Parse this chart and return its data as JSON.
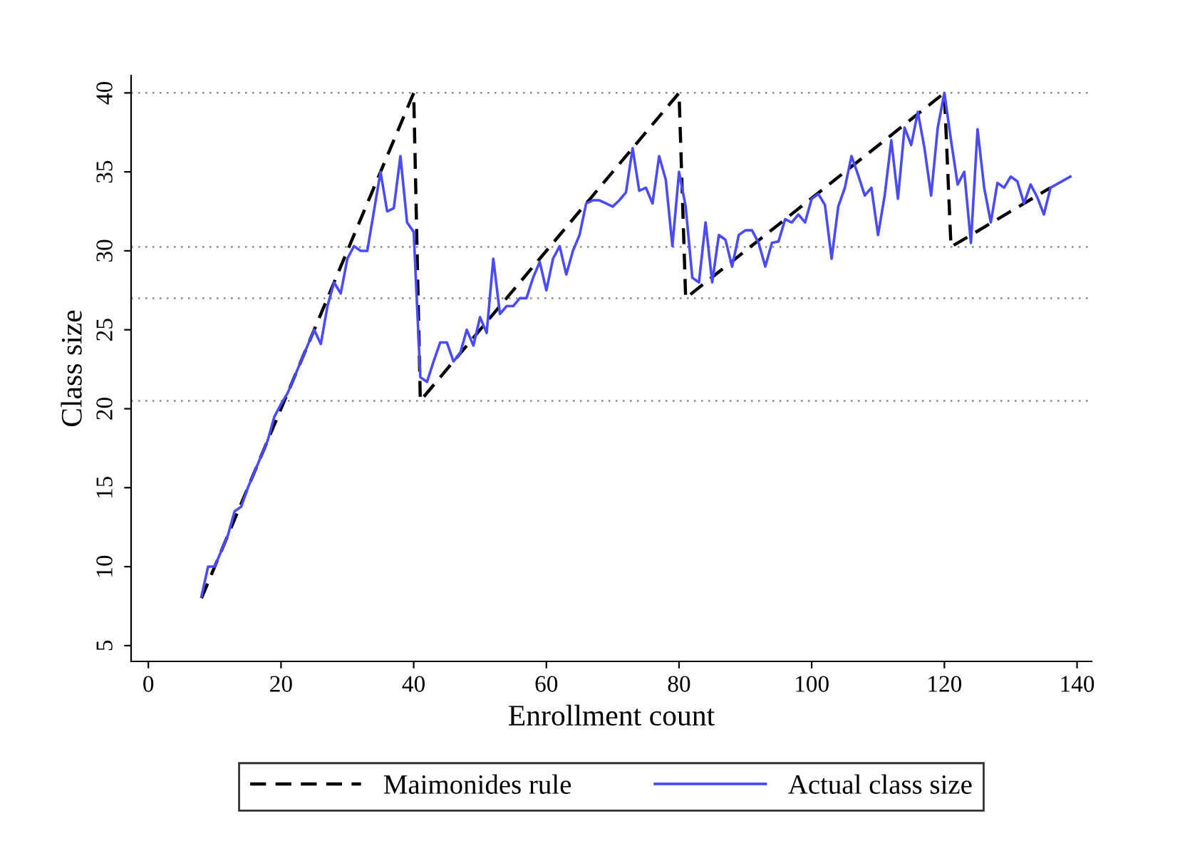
{
  "chart_data": {
    "type": "line",
    "xlabel": "Enrollment count",
    "ylabel": "Class size",
    "xlim": [
      -2.6,
      142.2
    ],
    "ylim": [
      4.0,
      41.1
    ],
    "xticks": [
      0,
      20,
      40,
      60,
      80,
      100,
      120,
      140
    ],
    "yticks": [
      5,
      10,
      15,
      20,
      25,
      30,
      35,
      40
    ],
    "grid": false,
    "legend": "bottom",
    "ref_lines": [
      {
        "axis": "y",
        "value": 40,
        "line_style": "dotted",
        "color": "#888888"
      },
      {
        "axis": "y",
        "value": 30.25,
        "line_style": "dotted",
        "color": "#888888"
      },
      {
        "axis": "y",
        "value": 27,
        "line_style": "dotted",
        "color": "#888888"
      },
      {
        "axis": "y",
        "value": 20.5,
        "line_style": "dotted",
        "color": "#888888"
      }
    ],
    "series": [
      {
        "name": "Maimonides rule",
        "color": "#000000",
        "line_style": "dashed",
        "x": [
          8,
          40,
          41,
          80,
          81,
          120,
          121,
          136
        ],
        "values": [
          8,
          40,
          20.5,
          40,
          27,
          40,
          30.25,
          34
        ]
      },
      {
        "name": "Actual class size",
        "color": "#4a4aff",
        "line_style": "solid",
        "x": [
          8,
          9,
          10,
          11,
          12,
          13,
          14,
          15,
          16,
          17,
          18,
          19,
          20,
          21,
          22,
          23,
          24,
          25,
          26,
          27,
          28,
          29,
          30,
          31,
          32,
          33,
          34,
          35,
          36,
          37,
          38,
          39,
          40,
          41,
          42,
          43,
          44,
          45,
          46,
          47,
          48,
          49,
          50,
          51,
          52,
          53,
          54,
          55,
          56,
          57,
          58,
          59,
          60,
          61,
          62,
          63,
          64,
          65,
          66,
          67,
          68,
          69,
          70,
          71,
          72,
          73,
          74,
          75,
          76,
          77,
          78,
          79,
          80,
          81,
          82,
          83,
          84,
          85,
          86,
          87,
          88,
          89,
          90,
          91,
          92,
          93,
          94,
          95,
          96,
          97,
          98,
          99,
          100,
          101,
          102,
          103,
          104,
          105,
          106,
          107,
          108,
          109,
          110,
          111,
          112,
          113,
          114,
          115,
          116,
          117,
          118,
          119,
          120,
          121,
          122,
          123,
          124,
          125,
          126,
          127,
          128,
          129,
          130,
          131,
          132,
          133,
          134,
          135,
          136,
          139
        ],
        "values": [
          8.1,
          10,
          10,
          11,
          12,
          13.5,
          13.8,
          15,
          16,
          17,
          18,
          19.5,
          20.3,
          21,
          22,
          23,
          24,
          25,
          24.1,
          26.5,
          28,
          27.3,
          29.5,
          30.3,
          30,
          30,
          32.5,
          35,
          32.5,
          32.7,
          36,
          31.8,
          31.2,
          22,
          21.7,
          23,
          24.2,
          24.2,
          23,
          23.5,
          25,
          24,
          25.8,
          24.8,
          29.5,
          26,
          26.5,
          26.5,
          27,
          27,
          28.3,
          29.3,
          27.5,
          29.5,
          30.3,
          28.5,
          30,
          31,
          33,
          33.2,
          33.2,
          33,
          32.8,
          33.2,
          33.7,
          36.5,
          33.8,
          34,
          33,
          36,
          34.5,
          30.3,
          35,
          32.8,
          28.3,
          28,
          31.8,
          28,
          31,
          30.7,
          29,
          31,
          31.3,
          31.3,
          30.5,
          29,
          30.5,
          30.6,
          32,
          31.8,
          32.3,
          31.8,
          33.3,
          33.6,
          32.9,
          29.5,
          32.8,
          34,
          36,
          34.8,
          33.5,
          34,
          31,
          33.5,
          37,
          33.3,
          37.8,
          36.7,
          38.8,
          36.5,
          33.5,
          37.8,
          40,
          37,
          34.2,
          35,
          30.5,
          37.7,
          34,
          31.8,
          34.3,
          34,
          34.7,
          34.4,
          33,
          34.2,
          33.4,
          32.3,
          34,
          34.7
        ]
      }
    ]
  }
}
